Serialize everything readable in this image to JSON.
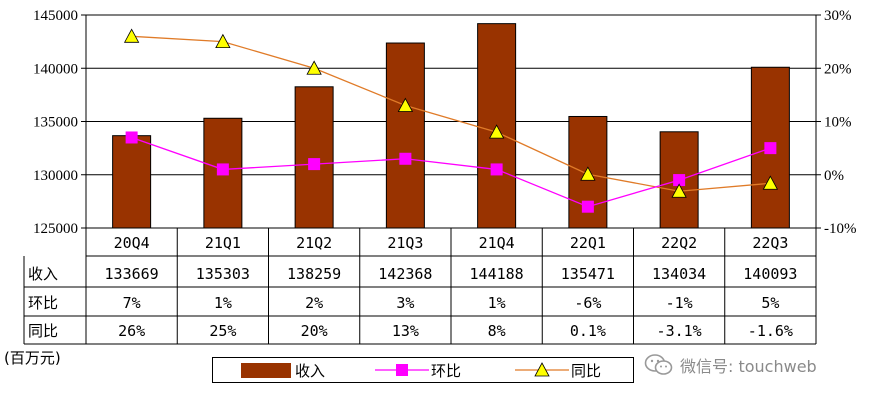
{
  "colors": {
    "bar": "#993300",
    "huanbi": "#ff00ff",
    "tongbi": "#ffff00",
    "tongbi_line": "#e07b28",
    "grid": "#000000"
  },
  "chart_data": {
    "type": "bar",
    "categories": [
      "20Q4",
      "21Q1",
      "21Q2",
      "21Q3",
      "21Q4",
      "22Q1",
      "22Q2",
      "22Q3"
    ],
    "series": [
      {
        "name": "收入",
        "type": "bar",
        "axis": "left",
        "values": [
          133669,
          135303,
          138259,
          142368,
          144188,
          135471,
          134034,
          140093
        ]
      },
      {
        "name": "环比",
        "type": "line",
        "axis": "right",
        "marker": "square",
        "values": [
          7,
          1,
          2,
          3,
          1,
          -6,
          -1,
          5
        ]
      },
      {
        "name": "同比",
        "type": "line",
        "axis": "right",
        "marker": "triangle",
        "values": [
          26,
          25,
          20,
          13,
          8,
          0.1,
          -3.1,
          -1.6
        ]
      }
    ],
    "ylim_left": [
      125000,
      145000
    ],
    "yticks_left": [
      "125000",
      "130000",
      "135000",
      "140000",
      "145000"
    ],
    "ylim_right": [
      -10,
      30
    ],
    "yticks_right": [
      "-10%",
      "0%",
      "10%",
      "20%",
      "30%"
    ],
    "unit_label": "(百万元)",
    "legend": [
      "收入",
      "环比",
      "同比"
    ],
    "table": {
      "row_labels": [
        "收入",
        "环比",
        "同比"
      ],
      "rows": [
        [
          "133669",
          "135303",
          "138259",
          "142368",
          "144188",
          "135471",
          "134034",
          "140093"
        ],
        [
          "7%",
          "1%",
          "2%",
          "3%",
          "1%",
          "-6%",
          "-1%",
          "5%"
        ],
        [
          "26%",
          "25%",
          "20%",
          "13%",
          "8%",
          "0.1%",
          "-3.1%",
          "-1.6%"
        ]
      ]
    }
  },
  "watermark": {
    "text": "微信号: touchweb",
    "icon": "wechat-icon"
  }
}
